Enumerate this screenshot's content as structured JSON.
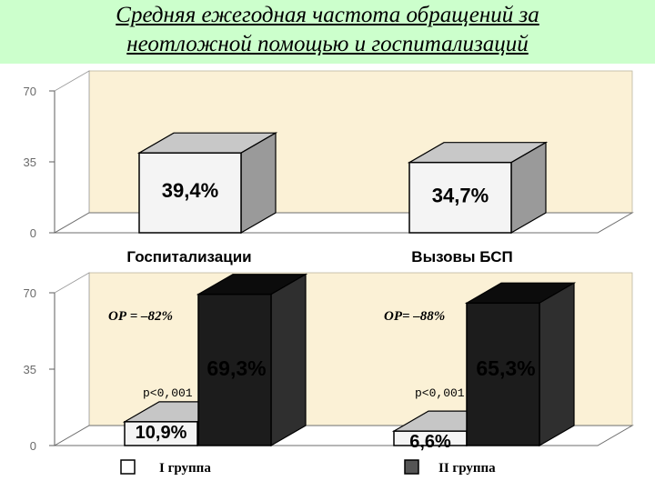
{
  "title": {
    "line1": "Средняя ежегодная частота обращений за",
    "line2": "неотложной помощью и госпитализаций"
  },
  "colors": {
    "banner": "#ccffcc",
    "plot_background": "#fbf1d6",
    "group1_fill": "#f4f4f4",
    "group2_fill": "#1c1c1c"
  },
  "chart_data": [
    {
      "type": "bar",
      "ylim": [
        0,
        70
      ],
      "yticks": [
        "0",
        "35",
        "70"
      ],
      "categories": [
        "Госпитализации",
        "Вызовы БСП"
      ],
      "values": [
        39.4,
        34.7
      ],
      "value_labels": [
        "39,4%",
        "34,7%"
      ],
      "grid": false
    },
    {
      "type": "bar",
      "ylim": [
        0,
        70
      ],
      "yticks": [
        "0",
        "35",
        "70"
      ],
      "categories": [
        "Госпитализации",
        "Вызовы БСП"
      ],
      "series": [
        {
          "name": "I группа",
          "values": [
            10.9,
            6.6
          ],
          "value_labels": [
            "10,9%",
            "6,6%"
          ]
        },
        {
          "name": "II группа",
          "values": [
            69.3,
            65.3
          ],
          "value_labels": [
            "69,3%",
            "65,3%"
          ]
        }
      ],
      "annotations": {
        "or": [
          "ОР = –82%",
          "ОР= –88%"
        ],
        "p": [
          "р<0,001",
          "р<0,001"
        ]
      },
      "legend": [
        "I группа",
        "II группа"
      ],
      "legend_position": "bottom",
      "grid": false
    }
  ]
}
